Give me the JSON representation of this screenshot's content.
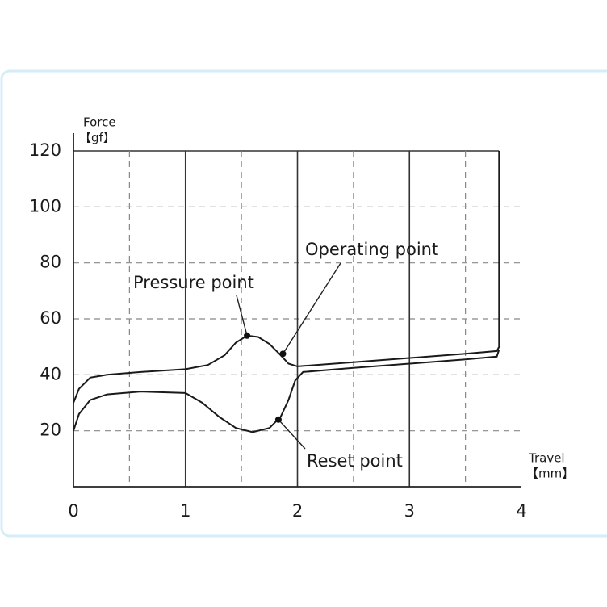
{
  "chart_data": {
    "type": "line",
    "ylabel": "Force",
    "yunit": "【gf】",
    "xlabel": "Travel",
    "xunit": "【mm】",
    "xlim": [
      0,
      4
    ],
    "ylim": [
      0,
      120
    ],
    "xticks": [
      0,
      1,
      2,
      3,
      4
    ],
    "yticks": [
      20,
      40,
      60,
      80,
      100,
      120
    ],
    "xgrid_minor": [
      0.5,
      1.5,
      2.5,
      3.5
    ],
    "grid": true,
    "series": [
      {
        "color": "#1a1a1a",
        "x": [
          0,
          0.05,
          0.15,
          0.3,
          0.6,
          1,
          1.2,
          1.35,
          1.45,
          1.55,
          1.65,
          1.75,
          1.85,
          1.92,
          2,
          2.5,
          3,
          3.5,
          3.78,
          3.8,
          3.8
        ],
        "values": [
          30,
          35,
          39,
          40,
          41,
          42,
          43.5,
          47,
          51.5,
          54,
          53.5,
          51,
          47,
          44,
          43,
          44.5,
          46,
          47.5,
          48.5,
          50,
          120
        ]
      },
      {
        "color": "#1a1a1a",
        "x": [
          0,
          0.05,
          0.15,
          0.3,
          0.6,
          1,
          1.15,
          1.3,
          1.45,
          1.6,
          1.75,
          1.85,
          1.92,
          1.98,
          2.05,
          2.5,
          3,
          3.5,
          3.78,
          3.8
        ],
        "values": [
          20,
          26,
          31,
          33,
          34,
          33.5,
          30,
          25,
          21,
          19.5,
          21,
          25,
          31,
          38,
          41,
          42.5,
          44,
          45.5,
          46.5,
          49
        ]
      }
    ],
    "annotations": [
      {
        "label": "Pressure point",
        "x": 1.55,
        "y": 54
      },
      {
        "label": "Operating point",
        "x": 1.87,
        "y": 47.5
      },
      {
        "label": "Reset point",
        "x": 1.83,
        "y": 24
      }
    ]
  }
}
